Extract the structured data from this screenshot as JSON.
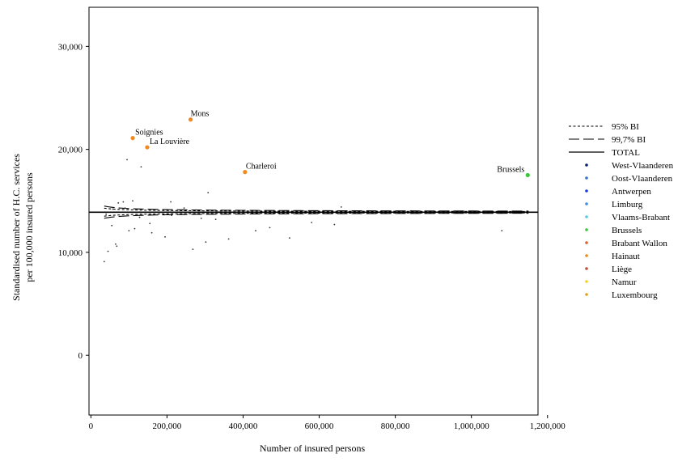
{
  "chart_data": {
    "type": "scatter",
    "title": "",
    "xlabel": "Number of insured persons",
    "ylabel_lines": [
      "Standardised number of H.C. services",
      "per 100,000 insured persons"
    ],
    "xlim": [
      -5000,
      1175000
    ],
    "ylim": [
      -5800,
      33800
    ],
    "x_ticks": [
      0,
      200000,
      400000,
      600000,
      800000,
      1000000,
      1200000
    ],
    "x_tick_labels": [
      "0",
      "200,000",
      "400,000",
      "600,000",
      "800,000",
      "1,000,000",
      "1,200,000"
    ],
    "y_ticks": [
      0,
      10000,
      20000,
      30000
    ],
    "y_tick_labels": [
      "0",
      "10,000",
      "20,000",
      "30,000"
    ],
    "total_line": 13900,
    "bands": [
      {
        "name": "95% BI",
        "style": "dotted",
        "z": 1.96,
        "x_range": [
          35000,
          1150000
        ]
      },
      {
        "name": "99,7% BI",
        "style": "dashed",
        "z": 3.0,
        "x_range": [
          35000,
          1150000
        ]
      }
    ],
    "total_name": "TOTAL",
    "grid": false,
    "legend_position": "right",
    "legend_groups": [
      {
        "name": "West-Vlaanderen",
        "color": "#0a1f7a"
      },
      {
        "name": "Oost-Vlaanderen",
        "color": "#3a6fd8"
      },
      {
        "name": "Antwerpen",
        "color": "#1a3ce0"
      },
      {
        "name": "Limburg",
        "color": "#3f8ee8"
      },
      {
        "name": "Vlaams-Brabant",
        "color": "#5cc8e0"
      },
      {
        "name": "Brussels",
        "color": "#3cc43c"
      },
      {
        "name": "Brabant Wallon",
        "color": "#e0602a"
      },
      {
        "name": "Hainaut",
        "color": "#f08a1e"
      },
      {
        "name": "Liège",
        "color": "#c0503a"
      },
      {
        "name": "Namur",
        "color": "#f2d21a"
      },
      {
        "name": "Luxembourg",
        "color": "#e0a020"
      }
    ],
    "labeled_points": [
      {
        "label": "Mons",
        "x": 262000,
        "y": 22900,
        "color": "#f08a1e"
      },
      {
        "label": "Soignies",
        "x": 110000,
        "y": 21100,
        "color": "#f08a1e"
      },
      {
        "label": "La Louvière",
        "x": 148000,
        "y": 20200,
        "color": "#f08a1e"
      },
      {
        "label": "Charleroi",
        "x": 405000,
        "y": 17800,
        "color": "#f08a1e"
      },
      {
        "label": "Brussels",
        "x": 1148000,
        "y": 17500,
        "color": "#3cc43c"
      }
    ],
    "small_points": [
      {
        "x": 35000,
        "y": 9100
      },
      {
        "x": 40000,
        "y": 13700
      },
      {
        "x": 45000,
        "y": 10100
      },
      {
        "x": 55000,
        "y": 12600
      },
      {
        "x": 58000,
        "y": 14200
      },
      {
        "x": 65000,
        "y": 10800
      },
      {
        "x": 68000,
        "y": 10600
      },
      {
        "x": 72000,
        "y": 14800
      },
      {
        "x": 85000,
        "y": 14900
      },
      {
        "x": 90000,
        "y": 14300
      },
      {
        "x": 95000,
        "y": 19000
      },
      {
        "x": 100000,
        "y": 12100
      },
      {
        "x": 110000,
        "y": 15000
      },
      {
        "x": 115000,
        "y": 12300
      },
      {
        "x": 118000,
        "y": 14200
      },
      {
        "x": 128000,
        "y": 13400
      },
      {
        "x": 132000,
        "y": 18300
      },
      {
        "x": 155000,
        "y": 12800
      },
      {
        "x": 160000,
        "y": 11900
      },
      {
        "x": 195000,
        "y": 11500
      },
      {
        "x": 210000,
        "y": 14900
      },
      {
        "x": 212000,
        "y": 13600
      },
      {
        "x": 245000,
        "y": 14300
      },
      {
        "x": 268000,
        "y": 10300
      },
      {
        "x": 290000,
        "y": 13300
      },
      {
        "x": 302000,
        "y": 11000
      },
      {
        "x": 308000,
        "y": 15800
      },
      {
        "x": 328000,
        "y": 13200
      },
      {
        "x": 362000,
        "y": 11300
      },
      {
        "x": 433000,
        "y": 12100
      },
      {
        "x": 470000,
        "y": 12400
      },
      {
        "x": 522000,
        "y": 11400
      },
      {
        "x": 580000,
        "y": 12900
      },
      {
        "x": 640000,
        "y": 12700
      },
      {
        "x": 658000,
        "y": 14400
      },
      {
        "x": 1080000,
        "y": 12100
      }
    ]
  }
}
